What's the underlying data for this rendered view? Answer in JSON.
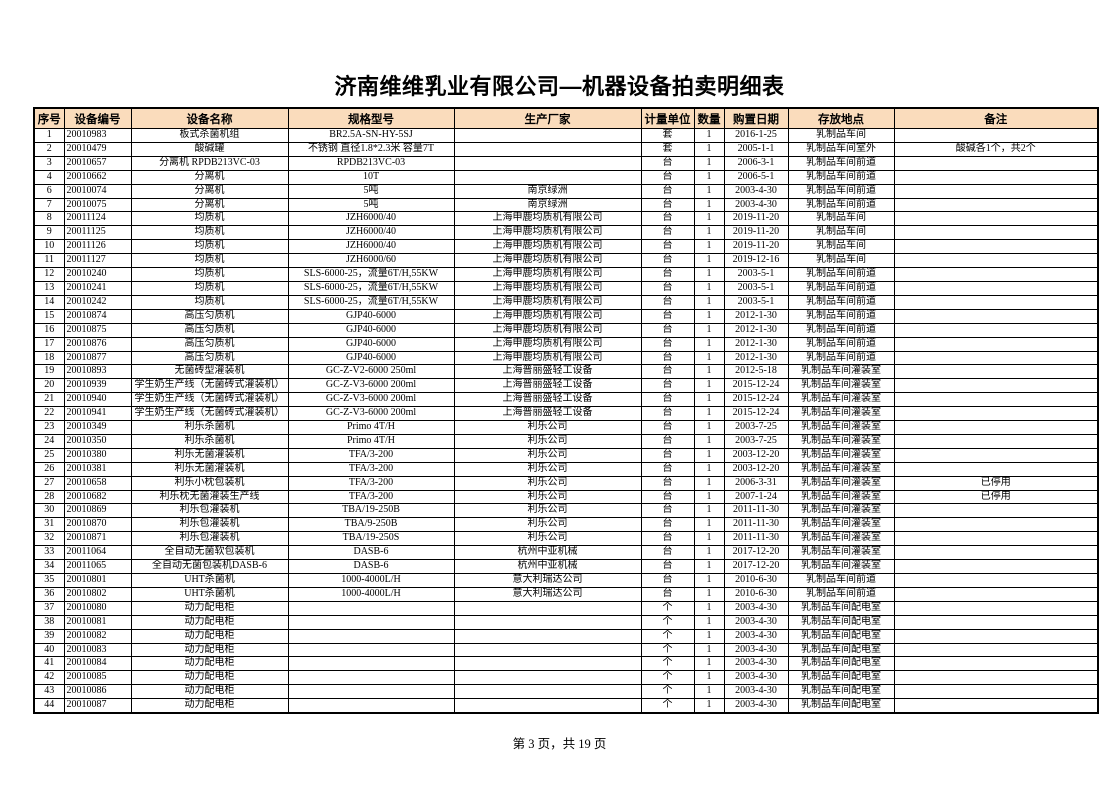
{
  "title": "济南维维乳业有限公司—机器设备拍卖明细表",
  "footer": {
    "page_indicator": "第 3 页，共 19 页"
  },
  "table": {
    "header_bg": "#FADCBC",
    "border_color": "#000000",
    "columns": [
      "序号",
      "设备编号",
      "设备名称",
      "规格型号",
      "生产厂家",
      "计量单位",
      "数量",
      "购置日期",
      "存放地点",
      "备注"
    ],
    "rows": [
      [
        "1",
        "20010983",
        "板式杀菌机组",
        "BR2.5A-SN-HY-5SJ",
        "",
        "套",
        "1",
        "2016-1-25",
        "乳制品车间",
        ""
      ],
      [
        "2",
        "20010479",
        "酸碱罐",
        "不锈钢 直径1.8*2.3米 容量7T",
        "",
        "套",
        "1",
        "2005-1-1",
        "乳制品车间室外",
        "酸碱各1个，共2个"
      ],
      [
        "3",
        "20010657",
        "分离机 RPDB213VC-03",
        "RPDB213VC-03",
        "",
        "台",
        "1",
        "2006-3-1",
        "乳制品车间前道",
        ""
      ],
      [
        "4",
        "20010662",
        "分离机",
        "10T",
        "",
        "台",
        "1",
        "2006-5-1",
        "乳制品车间前道",
        ""
      ],
      [
        "6",
        "20010074",
        "分离机",
        "5吨",
        "南京绿洲",
        "台",
        "1",
        "2003-4-30",
        "乳制品车间前道",
        ""
      ],
      [
        "7",
        "20010075",
        "分离机",
        "5吨",
        "南京绿洲",
        "台",
        "1",
        "2003-4-30",
        "乳制品车间前道",
        ""
      ],
      [
        "8",
        "20011124",
        "均质机",
        "JZH6000/40",
        "上海申鹿均质机有限公司",
        "台",
        "1",
        "2019-11-20",
        "乳制品车间",
        ""
      ],
      [
        "9",
        "20011125",
        "均质机",
        "JZH6000/40",
        "上海申鹿均质机有限公司",
        "台",
        "1",
        "2019-11-20",
        "乳制品车间",
        ""
      ],
      [
        "10",
        "20011126",
        "均质机",
        "JZH6000/40",
        "上海申鹿均质机有限公司",
        "台",
        "1",
        "2019-11-20",
        "乳制品车间",
        ""
      ],
      [
        "11",
        "20011127",
        "均质机",
        "JZH6000/60",
        "上海申鹿均质机有限公司",
        "台",
        "1",
        "2019-12-16",
        "乳制品车间",
        ""
      ],
      [
        "12",
        "20010240",
        "均质机",
        "SLS-6000-25，流量6T/H,55KW",
        "上海申鹿均质机有限公司",
        "台",
        "1",
        "2003-5-1",
        "乳制品车间前道",
        ""
      ],
      [
        "13",
        "20010241",
        "均质机",
        "SLS-6000-25，流量6T/H,55KW",
        "上海申鹿均质机有限公司",
        "台",
        "1",
        "2003-5-1",
        "乳制品车间前道",
        ""
      ],
      [
        "14",
        "20010242",
        "均质机",
        "SLS-6000-25，流量6T/H,55KW",
        "上海申鹿均质机有限公司",
        "台",
        "1",
        "2003-5-1",
        "乳制品车间前道",
        ""
      ],
      [
        "15",
        "20010874",
        "高压匀质机",
        "GJP40-6000",
        "上海申鹿均质机有限公司",
        "台",
        "1",
        "2012-1-30",
        "乳制品车间前道",
        ""
      ],
      [
        "16",
        "20010875",
        "高压匀质机",
        "GJP40-6000",
        "上海申鹿均质机有限公司",
        "台",
        "1",
        "2012-1-30",
        "乳制品车间前道",
        ""
      ],
      [
        "17",
        "20010876",
        "高压匀质机",
        "GJP40-6000",
        "上海申鹿均质机有限公司",
        "台",
        "1",
        "2012-1-30",
        "乳制品车间前道",
        ""
      ],
      [
        "18",
        "20010877",
        "高压匀质机",
        "GJP40-6000",
        "上海申鹿均质机有限公司",
        "台",
        "1",
        "2012-1-30",
        "乳制品车间前道",
        ""
      ],
      [
        "19",
        "20010893",
        "无菌砖型灌装机",
        "GC-Z-V2-6000 250ml",
        "上海普丽盛轻工设备",
        "台",
        "1",
        "2012-5-18",
        "乳制品车间灌装室",
        ""
      ],
      [
        "20",
        "20010939",
        "学生奶生产线（无菌砖式灌装机）",
        "GC-Z-V3-6000 200ml",
        "上海普丽盛轻工设备",
        "台",
        "1",
        "2015-12-24",
        "乳制品车间灌装室",
        ""
      ],
      [
        "21",
        "20010940",
        "学生奶生产线（无菌砖式灌装机）",
        "GC-Z-V3-6000 200ml",
        "上海普丽盛轻工设备",
        "台",
        "1",
        "2015-12-24",
        "乳制品车间灌装室",
        ""
      ],
      [
        "22",
        "20010941",
        "学生奶生产线（无菌砖式灌装机）",
        "GC-Z-V3-6000 200ml",
        "上海普丽盛轻工设备",
        "台",
        "1",
        "2015-12-24",
        "乳制品车间灌装室",
        ""
      ],
      [
        "23",
        "20010349",
        "利乐杀菌机",
        "Primo 4T/H",
        "利乐公司",
        "台",
        "1",
        "2003-7-25",
        "乳制品车间灌装室",
        ""
      ],
      [
        "24",
        "20010350",
        "利乐杀菌机",
        "Primo 4T/H",
        "利乐公司",
        "台",
        "1",
        "2003-7-25",
        "乳制品车间灌装室",
        ""
      ],
      [
        "25",
        "20010380",
        "利乐无菌灌装机",
        "TFA/3-200",
        "利乐公司",
        "台",
        "1",
        "2003-12-20",
        "乳制品车间灌装室",
        ""
      ],
      [
        "26",
        "20010381",
        "利乐无菌灌装机",
        "TFA/3-200",
        "利乐公司",
        "台",
        "1",
        "2003-12-20",
        "乳制品车间灌装室",
        ""
      ],
      [
        "27",
        "20010658",
        "利乐小枕包装机",
        "TFA/3-200",
        "利乐公司",
        "台",
        "1",
        "2006-3-31",
        "乳制品车间灌装室",
        "已停用"
      ],
      [
        "28",
        "20010682",
        "利乐枕无菌灌装生产线",
        "TFA/3-200",
        "利乐公司",
        "台",
        "1",
        "2007-1-24",
        "乳制品车间灌装室",
        "已停用"
      ],
      [
        "30",
        "20010869",
        "利乐包灌装机",
        "TBA/19-250B",
        "利乐公司",
        "台",
        "1",
        "2011-11-30",
        "乳制品车间灌装室",
        ""
      ],
      [
        "31",
        "20010870",
        "利乐包灌装机",
        "TBA/9-250B",
        "利乐公司",
        "台",
        "1",
        "2011-11-30",
        "乳制品车间灌装室",
        ""
      ],
      [
        "32",
        "20010871",
        "利乐包灌装机",
        "TBA/19-250S",
        "利乐公司",
        "台",
        "1",
        "2011-11-30",
        "乳制品车间灌装室",
        ""
      ],
      [
        "33",
        "20011064",
        "全自动无菌软包装机",
        "DASB-6",
        "杭州中亚机械",
        "台",
        "1",
        "2017-12-20",
        "乳制品车间灌装室",
        ""
      ],
      [
        "34",
        "20011065",
        "全自动无菌包装机DASB-6",
        "DASB-6",
        "杭州中亚机械",
        "台",
        "1",
        "2017-12-20",
        "乳制品车间灌装室",
        ""
      ],
      [
        "35",
        "20010801",
        "UHT杀菌机",
        "1000-4000L/H",
        "意大利瑞达公司",
        "台",
        "1",
        "2010-6-30",
        "乳制品车间前道",
        ""
      ],
      [
        "36",
        "20010802",
        "UHT杀菌机",
        "1000-4000L/H",
        "意大利瑞达公司",
        "台",
        "1",
        "2010-6-30",
        "乳制品车间前道",
        ""
      ],
      [
        "37",
        "20010080",
        "动力配电柜",
        "",
        "",
        "个",
        "1",
        "2003-4-30",
        "乳制品车间配电室",
        ""
      ],
      [
        "38",
        "20010081",
        "动力配电柜",
        "",
        "",
        "个",
        "1",
        "2003-4-30",
        "乳制品车间配电室",
        ""
      ],
      [
        "39",
        "20010082",
        "动力配电柜",
        "",
        "",
        "个",
        "1",
        "2003-4-30",
        "乳制品车间配电室",
        ""
      ],
      [
        "40",
        "20010083",
        "动力配电柜",
        "",
        "",
        "个",
        "1",
        "2003-4-30",
        "乳制品车间配电室",
        ""
      ],
      [
        "41",
        "20010084",
        "动力配电柜",
        "",
        "",
        "个",
        "1",
        "2003-4-30",
        "乳制品车间配电室",
        ""
      ],
      [
        "42",
        "20010085",
        "动力配电柜",
        "",
        "",
        "个",
        "1",
        "2003-4-30",
        "乳制品车间配电室",
        ""
      ],
      [
        "43",
        "20010086",
        "动力配电柜",
        "",
        "",
        "个",
        "1",
        "2003-4-30",
        "乳制品车间配电室",
        ""
      ],
      [
        "44",
        "20010087",
        "动力配电柜",
        "",
        "",
        "个",
        "1",
        "2003-4-30",
        "乳制品车间配电室",
        ""
      ]
    ]
  }
}
